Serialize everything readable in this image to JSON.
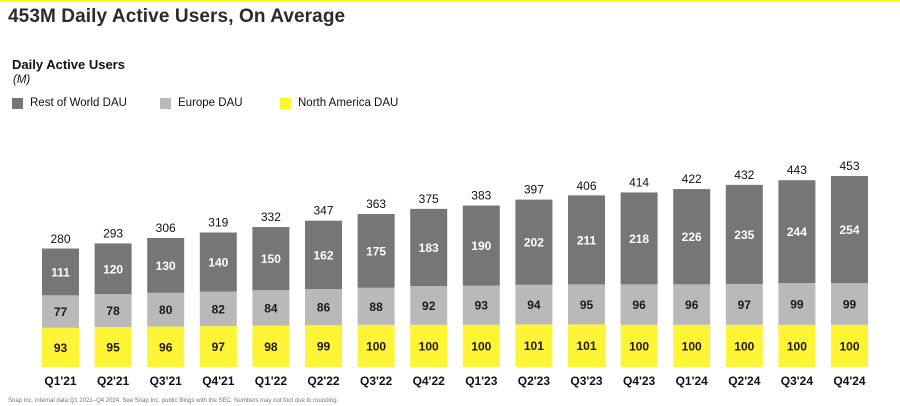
{
  "header": {
    "title": "453M Daily Active Users, On Average"
  },
  "footnote": "Snap Inc. internal data Q1 2021–Q4 2024. See Snap Inc. public filings with the SEC. Numbers may not foot due to rounding.",
  "colors": {
    "accent": "#FFFC00",
    "rest_of_world": "#767676",
    "europe": "#B9B9B9",
    "north_america": "#FFF436"
  },
  "chart_data": {
    "type": "bar",
    "stacked": true,
    "title": "Daily Active Users",
    "subtitle": "(M)",
    "legend_position": "top-left",
    "grid": false,
    "categories": [
      "Q1'21",
      "Q2'21",
      "Q3'21",
      "Q4'21",
      "Q1'22",
      "Q2'22",
      "Q3'22",
      "Q4'22",
      "Q1'23",
      "Q2'23",
      "Q3'23",
      "Q4'23",
      "Q1'24",
      "Q2'24",
      "Q3'24",
      "Q4'24"
    ],
    "series": [
      {
        "name": "North America DAU",
        "color": "#FFF436",
        "values": [
          93,
          95,
          96,
          97,
          98,
          99,
          100,
          100,
          100,
          101,
          101,
          100,
          100,
          100,
          100,
          100
        ]
      },
      {
        "name": "Europe DAU",
        "color": "#B9B9B9",
        "values": [
          77,
          78,
          80,
          82,
          84,
          86,
          88,
          92,
          93,
          94,
          95,
          96,
          96,
          97,
          99,
          99
        ]
      },
      {
        "name": "Rest of World DAU",
        "color": "#767676",
        "values": [
          111,
          120,
          130,
          140,
          150,
          162,
          175,
          183,
          190,
          202,
          211,
          218,
          226,
          235,
          244,
          254
        ]
      }
    ],
    "totals": [
      280,
      293,
      306,
      319,
      332,
      347,
      363,
      375,
      383,
      397,
      406,
      414,
      422,
      432,
      443,
      453
    ],
    "legend_order": [
      "Rest of World DAU",
      "Europe DAU",
      "North America DAU"
    ],
    "ylim": [
      0,
      470
    ]
  }
}
